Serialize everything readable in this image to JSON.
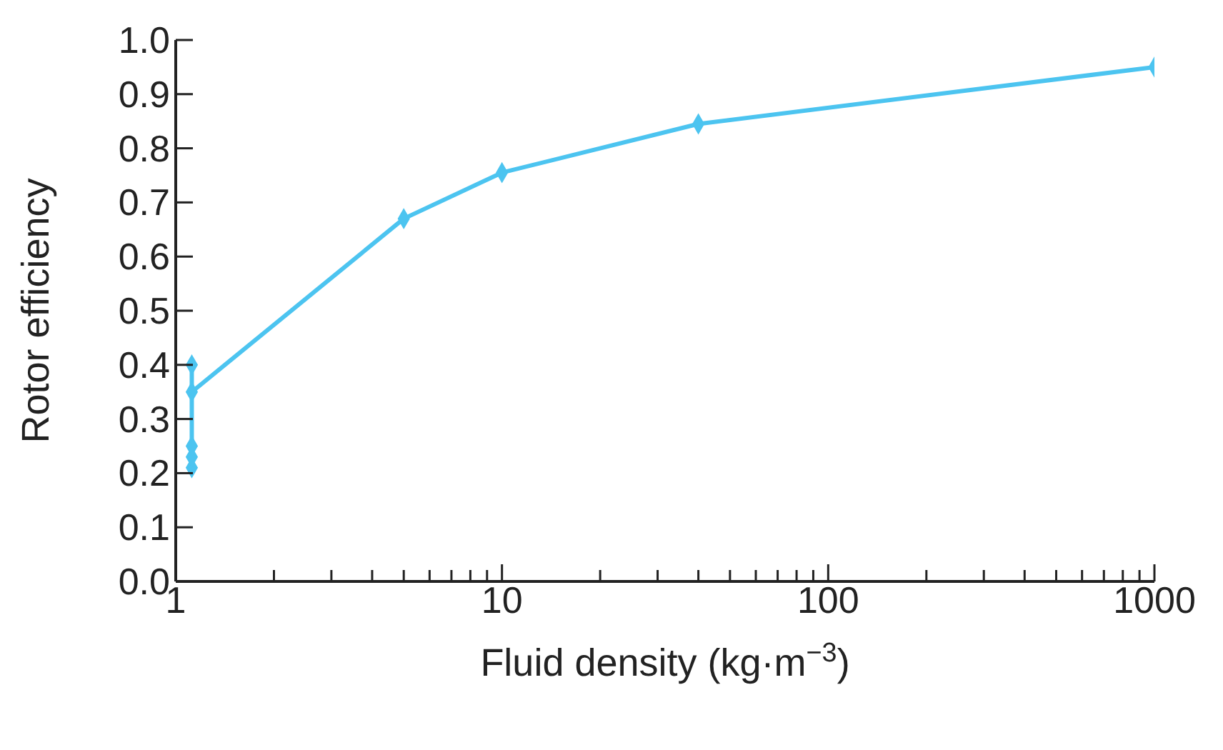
{
  "chart_data": {
    "type": "line",
    "xlabel": "Fluid density (kg·m$^{−3}$)",
    "ylabel": "Rotor efficiency",
    "x": [
      1.12,
      1.12,
      1.12,
      1.12,
      1.12,
      5,
      10,
      40,
      1000
    ],
    "series": [
      {
        "color": "#4cc4f0",
        "values": [
          0.21,
          0.23,
          0.25,
          0.4,
          0.35,
          0.67,
          0.755,
          0.845,
          0.95
        ]
      }
    ],
    "log": "x",
    "xlim": [
      1,
      1000
    ],
    "xticks": [
      1,
      {
        "value": 2,
        "label": null
      },
      {
        "value": 3,
        "label": null
      },
      {
        "value": 4,
        "label": null
      },
      {
        "value": 5,
        "label": null
      },
      {
        "value": 6,
        "label": null
      },
      {
        "value": 7,
        "label": null
      },
      {
        "value": 8,
        "label": null
      },
      {
        "value": 9,
        "label": null
      },
      10,
      {
        "value": 20,
        "label": null
      },
      {
        "value": 30,
        "label": null
      },
      {
        "value": 40,
        "label": null
      },
      {
        "value": 50,
        "label": null
      },
      {
        "value": 60,
        "label": null
      },
      {
        "value": 70,
        "label": null
      },
      {
        "value": 80,
        "label": null
      },
      {
        "value": 90,
        "label": null
      },
      100,
      {
        "value": 200,
        "label": null
      },
      {
        "value": 300,
        "label": null
      },
      {
        "value": 400,
        "label": null
      },
      {
        "value": 500,
        "label": null
      },
      {
        "value": 600,
        "label": null
      },
      {
        "value": 700,
        "label": null
      },
      {
        "value": 800,
        "label": null
      },
      {
        "value": 900,
        "label": null
      },
      1000
    ],
    "ylim": [
      0,
      1
    ],
    "yticks": [
      {
        "value": 0,
        "label": "0.0"
      },
      0.1,
      0.2,
      0.3,
      0.4,
      0.5,
      0.6,
      0.7,
      0.8,
      0.9,
      {
        "value": 1,
        "label": "1.0"
      }
    ],
    "grid": false,
    "legend": false,
    "marker": "diamond",
    "line_style": "solid"
  }
}
